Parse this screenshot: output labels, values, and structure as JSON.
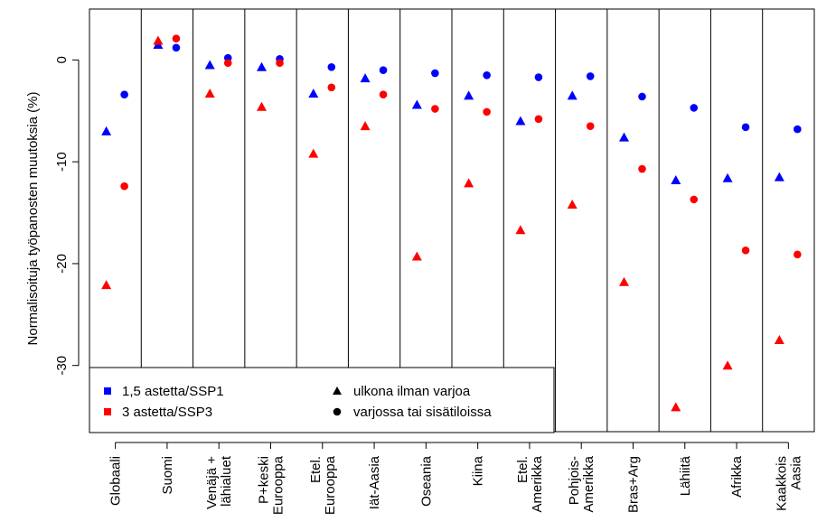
{
  "chart_data": {
    "type": "scatter",
    "title": "",
    "xlabel": "",
    "ylabel": "Normalisoituja työpanosten muutoksia (%)",
    "ylim": [
      -36.5,
      5
    ],
    "yticks": [
      0,
      -10,
      -20,
      -30
    ],
    "grid": false,
    "legend_position": "bottom-left",
    "categories": [
      [
        "Globaali"
      ],
      [
        "Suomi"
      ],
      [
        "Venäjä +",
        "lähialuet"
      ],
      [
        "P+keski",
        "Eurooppa"
      ],
      [
        "Etel.",
        "Eurooppa"
      ],
      [
        "Iät-Aasia"
      ],
      [
        "Oseania"
      ],
      [
        "Kiina"
      ],
      [
        "Etel.",
        "Amerikka"
      ],
      [
        "Pohjois-",
        "Amerikka"
      ],
      [
        "Bras+Arg"
      ],
      [
        "Lähiitä"
      ],
      [
        "Afrikka"
      ],
      [
        "Kaakkois",
        "Aasia"
      ]
    ],
    "series": [
      {
        "scenario": "ssp1",
        "location": "outdoor",
        "color": "#0000ff",
        "marker": "triangle",
        "values": [
          -7.0,
          1.5,
          -0.5,
          -0.7,
          -3.3,
          -1.8,
          -4.4,
          -3.5,
          -6.0,
          -3.5,
          -7.6,
          -11.8,
          -11.6,
          -11.5
        ]
      },
      {
        "scenario": "ssp1",
        "location": "indoor",
        "color": "#0000ff",
        "marker": "circle",
        "values": [
          -3.4,
          1.2,
          0.2,
          0.1,
          -0.7,
          -1.0,
          -1.3,
          -1.5,
          -1.7,
          -1.6,
          -3.6,
          -4.7,
          -6.6,
          -6.8
        ]
      },
      {
        "scenario": "ssp3",
        "location": "outdoor",
        "color": "#ff0000",
        "marker": "triangle",
        "values": [
          -22.1,
          1.9,
          -3.3,
          -4.6,
          -9.2,
          -6.5,
          -19.3,
          -12.1,
          -16.7,
          -14.2,
          -21.8,
          -34.1,
          -30.0,
          -27.5
        ]
      },
      {
        "scenario": "ssp3",
        "location": "indoor",
        "color": "#ff0000",
        "marker": "circle",
        "values": [
          -12.4,
          2.1,
          -0.3,
          -0.3,
          -2.7,
          -3.4,
          -4.8,
          -5.1,
          -5.8,
          -6.5,
          -10.7,
          -13.7,
          -18.7,
          -19.1
        ]
      }
    ],
    "legend": {
      "ssp1_label": "1,5 astetta/SSP1",
      "ssp3_label": "3 astetta/SSP3",
      "outdoor_label": "ulkona ilman varjoa",
      "indoor_label": "varjossa tai sisätiloissa"
    }
  }
}
